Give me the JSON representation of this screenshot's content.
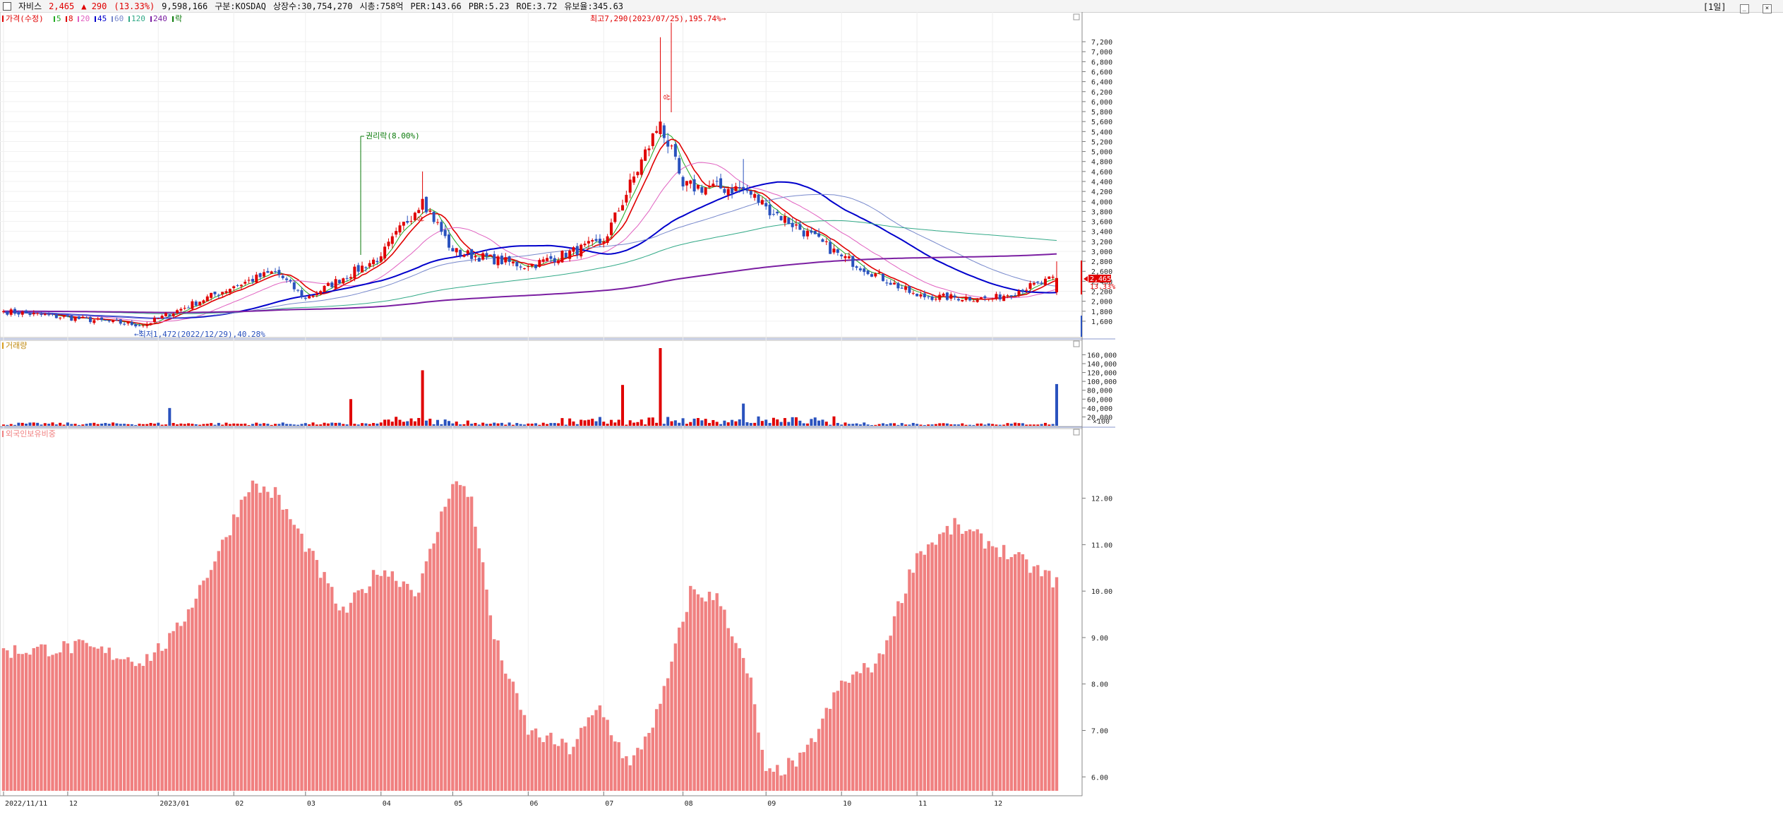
{
  "header": {
    "stock_name": "자비스",
    "price": "2,465",
    "change": "▲ 290",
    "change_pct": "(13.33%)",
    "volume": "9,598,166",
    "market": "구분:KOSDAQ",
    "shares": "상장수:30,754,270",
    "mcap": "시총:758억",
    "per": "PER:143.66",
    "pbr": "PBR:5.23",
    "roe": "ROE:3.72",
    "float": "유보율:345.63",
    "period_label": "[1일]"
  },
  "price_panel": {
    "legend_title": "가격(수정)",
    "ma_legend": [
      {
        "label": "5",
        "color": "#22aa22"
      },
      {
        "label": "8",
        "color": "#e00000"
      },
      {
        "label": "20",
        "color": "#e060c0"
      },
      {
        "label": "45",
        "color": "#0000cc"
      },
      {
        "label": "60",
        "color": "#7788cc"
      },
      {
        "label": "120",
        "color": "#33aa88"
      },
      {
        "label": "240",
        "color": "#7b1fa2"
      },
      {
        "label": "락",
        "color": "#0a7a0a"
      }
    ],
    "annotations": {
      "high": "최고7,290(2023/07/25),195.74%→",
      "low": "←최저1,472(2022/12/29),40.28%",
      "rights": "권리락(8.00%)",
      "upper_limit_mark": "상"
    },
    "y_ticks": [
      "7,200",
      "7,000",
      "6,800",
      "6,600",
      "6,400",
      "6,200",
      "6,000",
      "5,800",
      "5,600",
      "5,400",
      "5,200",
      "5,000",
      "4,800",
      "4,600",
      "4,400",
      "4,200",
      "4,000",
      "3,800",
      "3,600",
      "3,400",
      "3,200",
      "3,000",
      "2,800",
      "2,600",
      "2,400",
      "2,200",
      "2,000",
      "1,800",
      "1,600"
    ],
    "y_tick_values": [
      7200,
      7000,
      6800,
      6600,
      6400,
      6200,
      6000,
      5800,
      5600,
      5400,
      5200,
      5000,
      4800,
      4600,
      4400,
      4200,
      4000,
      3800,
      3600,
      3400,
      3200,
      3000,
      2800,
      2600,
      2400,
      2200,
      2000,
      1800,
      1600
    ],
    "last_price_label": "2,465",
    "last_pct_label": "13.33%"
  },
  "volume_panel": {
    "legend_title": "거래량",
    "y_ticks": [
      "160,000",
      "140,000",
      "120,000",
      "100,000",
      "80,000",
      "60,000",
      "40,000",
      "20,000"
    ],
    "y_tick_values": [
      160000,
      140000,
      120000,
      100000,
      80000,
      60000,
      40000,
      20000
    ],
    "unit": "×100"
  },
  "foreign_panel": {
    "legend_title": "외국인보유비중",
    "y_ticks": [
      "12.00",
      "11.00",
      "10.00",
      "9.00",
      "8.00",
      "7.00",
      "6.00"
    ],
    "y_tick_values": [
      12,
      11,
      10,
      9,
      8,
      7,
      6
    ]
  },
  "x_axis": {
    "labels": [
      "2022/11/11",
      "12",
      "2023/01",
      "02",
      "03",
      "04",
      "05",
      "06",
      "07",
      "08",
      "09",
      "10",
      "11",
      "12"
    ],
    "label_index": [
      0,
      17,
      41,
      61,
      80,
      100,
      119,
      139,
      159,
      180,
      202,
      222,
      242,
      262
    ]
  },
  "chart_data": {
    "type": "candlestick",
    "title": "자비스",
    "x_start": "2022/11/11",
    "ohlc_key_points": [
      {
        "date": "2022/11/11",
        "close": 1800
      },
      {
        "date": "2022/12/29",
        "low": 1472,
        "close": 1520
      },
      {
        "date": "2023/02",
        "close": 2300
      },
      {
        "date": "2023/02/20",
        "close": 2600
      },
      {
        "date": "2023/03",
        "close": 2050
      },
      {
        "date": "2023/04",
        "close": 2900
      },
      {
        "date": "2023/04/19",
        "high": 4600,
        "close": 4050
      },
      {
        "date": "2023/05",
        "close": 3000
      },
      {
        "date": "2023/06",
        "close": 2700
      },
      {
        "date": "2023/07",
        "close": 3200
      },
      {
        "date": "2023/07/25",
        "high": 7290,
        "close": 5600
      },
      {
        "date": "2023/08",
        "close": 4300
      },
      {
        "date": "2023/08/18",
        "high": 4850,
        "close": 4250
      },
      {
        "date": "2023/09",
        "close": 3900
      },
      {
        "date": "2023/10",
        "close": 2900
      },
      {
        "date": "2023/11",
        "close": 2100
      },
      {
        "date": "2023/12",
        "close": 2050
      },
      {
        "date": "last",
        "open": 2180,
        "high": 2800,
        "low": 2150,
        "close": 2465
      }
    ],
    "moving_averages": [
      5,
      8,
      20,
      45,
      60,
      120,
      240
    ],
    "volume_peaks_x100": [
      {
        "date": "2023/01/05",
        "value": 40000
      },
      {
        "date": "2023/03/20",
        "value": 60000
      },
      {
        "date": "2023/04/19",
        "value": 125000
      },
      {
        "date": "2023/07/03",
        "value": 92000
      },
      {
        "date": "2023/07/25",
        "value": 175000
      },
      {
        "date": "2023/08/18",
        "value": 50000
      },
      {
        "date": "last",
        "value": 94000
      }
    ],
    "foreign_ownership_pct_range": [
      6.0,
      12.7
    ]
  }
}
